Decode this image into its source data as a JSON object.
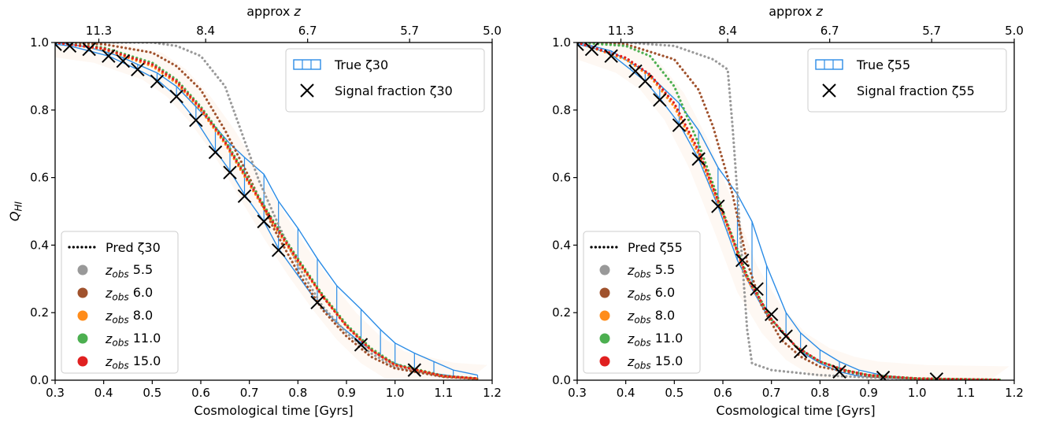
{
  "chart_data": [
    {
      "type": "line",
      "xlabel": "Cosmological time [Gyrs]",
      "ylabel": "Q_HI",
      "top_xlabel": "approx z",
      "xlim": [
        0.3,
        1.2
      ],
      "ylim": [
        0.0,
        1.0
      ],
      "xticks": [
        0.3,
        0.4,
        0.5,
        0.6,
        0.7,
        0.8,
        0.9,
        1.0,
        1.1,
        1.2
      ],
      "xtick_labels": [
        "0.3",
        "0.4",
        "0.5",
        "0.6",
        "0.7",
        "0.8",
        "0.9",
        "1.0",
        "1.1",
        "1.2"
      ],
      "yticks": [
        0.0,
        0.2,
        0.4,
        0.6,
        0.8,
        1.0
      ],
      "ytick_labels": [
        "0.0",
        "0.2",
        "0.4",
        "0.6",
        "0.8",
        "1.0"
      ],
      "top_ticks": [
        {
          "t": 0.39,
          "label": "11.3"
        },
        {
          "t": 0.61,
          "label": "8.4"
        },
        {
          "t": 0.82,
          "label": "6.7"
        },
        {
          "t": 1.03,
          "label": "5.7"
        },
        {
          "t": 1.2,
          "label": "5.0"
        }
      ],
      "legend_upper": {
        "placement": "top-right",
        "entries": [
          {
            "label": "True ζ30",
            "marker": "step",
            "color": "#2b8ce6"
          },
          {
            "label": "Signal fraction ζ30",
            "marker": "x",
            "color": "#000000"
          }
        ]
      },
      "legend_lower": {
        "placement": "bottom-left",
        "entries": [
          {
            "label": "Pred ζ30",
            "marker": "dots",
            "color": "#000000"
          },
          {
            "label": "z_obs 5.5",
            "marker": "circle",
            "color": "#999999"
          },
          {
            "label": "z_obs 6.0",
            "marker": "circle",
            "color": "#a0522d"
          },
          {
            "label": "z_obs 8.0",
            "marker": "circle",
            "color": "#ff8c1a"
          },
          {
            "label": "z_obs 11.0",
            "marker": "circle",
            "color": "#4caf50"
          },
          {
            "label": "z_obs 15.0",
            "marker": "circle",
            "color": "#e02020"
          }
        ]
      },
      "true_series": {
        "name": "True ζ30",
        "color": "#2b8ce6",
        "x": [
          0.3,
          0.33,
          0.37,
          0.41,
          0.44,
          0.47,
          0.51,
          0.55,
          0.59,
          0.63,
          0.66,
          0.69,
          0.73,
          0.76,
          0.8,
          0.84,
          0.88,
          0.93,
          0.97,
          1.0,
          1.04,
          1.08,
          1.12,
          1.17
        ],
        "lower": [
          0.995,
          0.99,
          0.975,
          0.96,
          0.94,
          0.92,
          0.89,
          0.84,
          0.77,
          0.68,
          0.62,
          0.55,
          0.47,
          0.39,
          0.31,
          0.23,
          0.17,
          0.11,
          0.07,
          0.05,
          0.03,
          0.02,
          0.012,
          0.006
        ],
        "upper": [
          1.0,
          0.995,
          0.985,
          0.97,
          0.955,
          0.935,
          0.91,
          0.87,
          0.81,
          0.75,
          0.7,
          0.66,
          0.61,
          0.53,
          0.45,
          0.36,
          0.28,
          0.21,
          0.15,
          0.11,
          0.08,
          0.055,
          0.03,
          0.015
        ]
      },
      "signal_fraction": {
        "name": "Signal fraction ζ30",
        "x": [
          0.3,
          0.33,
          0.37,
          0.41,
          0.44,
          0.47,
          0.51,
          0.55,
          0.59,
          0.63,
          0.66,
          0.69,
          0.73,
          0.76,
          0.84,
          0.93,
          1.04
        ],
        "y": [
          0.995,
          0.99,
          0.98,
          0.96,
          0.945,
          0.92,
          0.885,
          0.84,
          0.77,
          0.675,
          0.615,
          0.545,
          0.47,
          0.385,
          0.23,
          0.105,
          0.03
        ]
      },
      "pred_series": [
        {
          "name": "z_obs 5.5",
          "color": "#999999",
          "x": [
            0.3,
            0.4,
            0.5,
            0.55,
            0.6,
            0.65,
            0.68,
            0.72,
            0.76,
            0.8,
            0.85,
            0.9,
            0.95,
            1.0,
            1.1,
            1.17
          ],
          "y": [
            1.0,
            1.0,
            1.0,
            0.99,
            0.96,
            0.87,
            0.75,
            0.59,
            0.46,
            0.34,
            0.22,
            0.14,
            0.08,
            0.04,
            0.01,
            0.005
          ]
        },
        {
          "name": "z_obs 6.0",
          "color": "#a0522d",
          "x": [
            0.3,
            0.4,
            0.5,
            0.55,
            0.6,
            0.65,
            0.7,
            0.75,
            0.8,
            0.85,
            0.9,
            0.95,
            1.0,
            1.1,
            1.17
          ],
          "y": [
            1.0,
            0.995,
            0.97,
            0.93,
            0.86,
            0.74,
            0.6,
            0.45,
            0.32,
            0.21,
            0.13,
            0.07,
            0.035,
            0.01,
            0.004
          ]
        },
        {
          "name": "z_obs 8.0",
          "color": "#ff8c1a",
          "x": [
            0.3,
            0.4,
            0.5,
            0.55,
            0.6,
            0.65,
            0.7,
            0.75,
            0.8,
            0.85,
            0.9,
            0.95,
            1.0,
            1.1,
            1.17
          ],
          "y": [
            1.0,
            0.98,
            0.93,
            0.88,
            0.8,
            0.7,
            0.58,
            0.46,
            0.35,
            0.25,
            0.16,
            0.09,
            0.045,
            0.012,
            0.005
          ]
        },
        {
          "name": "z_obs 11.0",
          "color": "#4caf50",
          "x": [
            0.3,
            0.4,
            0.5,
            0.55,
            0.6,
            0.65,
            0.7,
            0.75,
            0.8,
            0.85,
            0.9,
            0.95,
            1.0,
            1.1,
            1.17
          ],
          "y": [
            1.0,
            0.985,
            0.94,
            0.89,
            0.81,
            0.71,
            0.59,
            0.47,
            0.36,
            0.255,
            0.165,
            0.095,
            0.048,
            0.013,
            0.005
          ]
        },
        {
          "name": "z_obs 15.0",
          "color": "#e02020",
          "x": [
            0.3,
            0.4,
            0.5,
            0.55,
            0.6,
            0.65,
            0.7,
            0.75,
            0.8,
            0.85,
            0.9,
            0.95,
            1.0,
            1.1,
            1.17
          ],
          "y": [
            1.0,
            0.982,
            0.935,
            0.885,
            0.805,
            0.705,
            0.585,
            0.465,
            0.355,
            0.25,
            0.16,
            0.09,
            0.045,
            0.012,
            0.005
          ]
        }
      ]
    },
    {
      "type": "line",
      "xlabel": "Cosmological time [Gyrs]",
      "ylabel": "",
      "top_xlabel": "approx z",
      "xlim": [
        0.3,
        1.2
      ],
      "ylim": [
        0.0,
        1.0
      ],
      "xticks": [
        0.3,
        0.4,
        0.5,
        0.6,
        0.7,
        0.8,
        0.9,
        1.0,
        1.1,
        1.2
      ],
      "xtick_labels": [
        "0.3",
        "0.4",
        "0.5",
        "0.6",
        "0.7",
        "0.8",
        "0.9",
        "1.0",
        "1.1",
        "1.2"
      ],
      "yticks": [
        0.0,
        0.2,
        0.4,
        0.6,
        0.8,
        1.0
      ],
      "ytick_labels": [
        "0.0",
        "0.2",
        "0.4",
        "0.6",
        "0.8",
        "1.0"
      ],
      "top_ticks": [
        {
          "t": 0.39,
          "label": "11.3"
        },
        {
          "t": 0.61,
          "label": "8.4"
        },
        {
          "t": 0.82,
          "label": "6.7"
        },
        {
          "t": 1.03,
          "label": "5.7"
        },
        {
          "t": 1.2,
          "label": "5.0"
        }
      ],
      "legend_upper": {
        "placement": "top-right",
        "entries": [
          {
            "label": "True ζ55",
            "marker": "step",
            "color": "#2b8ce6"
          },
          {
            "label": "Signal fraction ζ55",
            "marker": "x",
            "color": "#000000"
          }
        ]
      },
      "legend_lower": {
        "placement": "bottom-left",
        "entries": [
          {
            "label": "Pred ζ55",
            "marker": "dots",
            "color": "#000000"
          },
          {
            "label": "z_obs 5.5",
            "marker": "circle",
            "color": "#999999"
          },
          {
            "label": "z_obs 6.0",
            "marker": "circle",
            "color": "#a0522d"
          },
          {
            "label": "z_obs 8.0",
            "marker": "circle",
            "color": "#ff8c1a"
          },
          {
            "label": "z_obs 11.0",
            "marker": "circle",
            "color": "#4caf50"
          },
          {
            "label": "z_obs 15.0",
            "marker": "circle",
            "color": "#e02020"
          }
        ]
      },
      "true_series": {
        "name": "True ζ55",
        "color": "#2b8ce6",
        "x": [
          0.3,
          0.33,
          0.37,
          0.41,
          0.44,
          0.47,
          0.51,
          0.55,
          0.59,
          0.63,
          0.66,
          0.69,
          0.73,
          0.76,
          0.8,
          0.84,
          0.88,
          0.93,
          0.97,
          1.0,
          1.04,
          1.08,
          1.12,
          1.17
        ],
        "lower": [
          0.995,
          0.985,
          0.965,
          0.92,
          0.885,
          0.835,
          0.76,
          0.655,
          0.515,
          0.355,
          0.27,
          0.195,
          0.13,
          0.085,
          0.05,
          0.025,
          0.012,
          0.007,
          0.004,
          0.003,
          0.002,
          0.001,
          0.001,
          0.0
        ],
        "upper": [
          1.0,
          0.99,
          0.975,
          0.94,
          0.915,
          0.875,
          0.82,
          0.74,
          0.63,
          0.55,
          0.47,
          0.34,
          0.2,
          0.14,
          0.09,
          0.055,
          0.03,
          0.014,
          0.008,
          0.005,
          0.003,
          0.002,
          0.001,
          0.001
        ]
      },
      "signal_fraction": {
        "name": "Signal fraction ζ55",
        "x": [
          0.3,
          0.33,
          0.37,
          0.42,
          0.44,
          0.47,
          0.51,
          0.55,
          0.59,
          0.64,
          0.67,
          0.7,
          0.73,
          0.76,
          0.84,
          0.93,
          1.04
        ],
        "y": [
          0.995,
          0.98,
          0.96,
          0.915,
          0.885,
          0.83,
          0.755,
          0.655,
          0.515,
          0.355,
          0.27,
          0.195,
          0.13,
          0.085,
          0.025,
          0.008,
          0.003
        ]
      },
      "pred_series": [
        {
          "name": "z_obs 5.5",
          "color": "#999999",
          "x": [
            0.3,
            0.4,
            0.5,
            0.58,
            0.61,
            0.62,
            0.63,
            0.64,
            0.65,
            0.66,
            0.7,
            0.8,
            0.9,
            1.0,
            1.17
          ],
          "y": [
            1.0,
            1.0,
            0.99,
            0.95,
            0.92,
            0.75,
            0.55,
            0.35,
            0.15,
            0.05,
            0.03,
            0.015,
            0.008,
            0.003,
            0.001
          ]
        },
        {
          "name": "z_obs 6.0",
          "color": "#a0522d",
          "x": [
            0.3,
            0.4,
            0.5,
            0.55,
            0.58,
            0.62,
            0.65,
            0.68,
            0.72,
            0.76,
            0.8,
            0.9,
            1.0,
            1.17
          ],
          "y": [
            1.0,
            0.995,
            0.95,
            0.86,
            0.75,
            0.55,
            0.35,
            0.22,
            0.12,
            0.07,
            0.04,
            0.012,
            0.004,
            0.001
          ]
        },
        {
          "name": "z_obs 8.0",
          "color": "#ff8c1a",
          "x": [
            0.3,
            0.4,
            0.45,
            0.5,
            0.55,
            0.6,
            0.65,
            0.7,
            0.75,
            0.8,
            0.85,
            0.9,
            1.0,
            1.17
          ],
          "y": [
            1.0,
            0.95,
            0.9,
            0.81,
            0.67,
            0.49,
            0.3,
            0.18,
            0.1,
            0.055,
            0.03,
            0.015,
            0.005,
            0.001
          ]
        },
        {
          "name": "z_obs 11.0",
          "color": "#4caf50",
          "x": [
            0.3,
            0.4,
            0.45,
            0.5,
            0.55,
            0.6,
            0.65,
            0.7,
            0.75,
            0.8,
            0.85,
            0.9,
            1.0,
            1.17
          ],
          "y": [
            1.0,
            0.99,
            0.96,
            0.87,
            0.7,
            0.5,
            0.31,
            0.18,
            0.1,
            0.055,
            0.03,
            0.015,
            0.005,
            0.001
          ]
        },
        {
          "name": "z_obs 15.0",
          "color": "#e02020",
          "x": [
            0.3,
            0.4,
            0.45,
            0.5,
            0.55,
            0.6,
            0.65,
            0.7,
            0.75,
            0.8,
            0.85,
            0.9,
            1.0,
            1.17
          ],
          "y": [
            1.0,
            0.955,
            0.905,
            0.82,
            0.68,
            0.495,
            0.305,
            0.18,
            0.1,
            0.055,
            0.03,
            0.015,
            0.005,
            0.001
          ]
        }
      ]
    }
  ]
}
